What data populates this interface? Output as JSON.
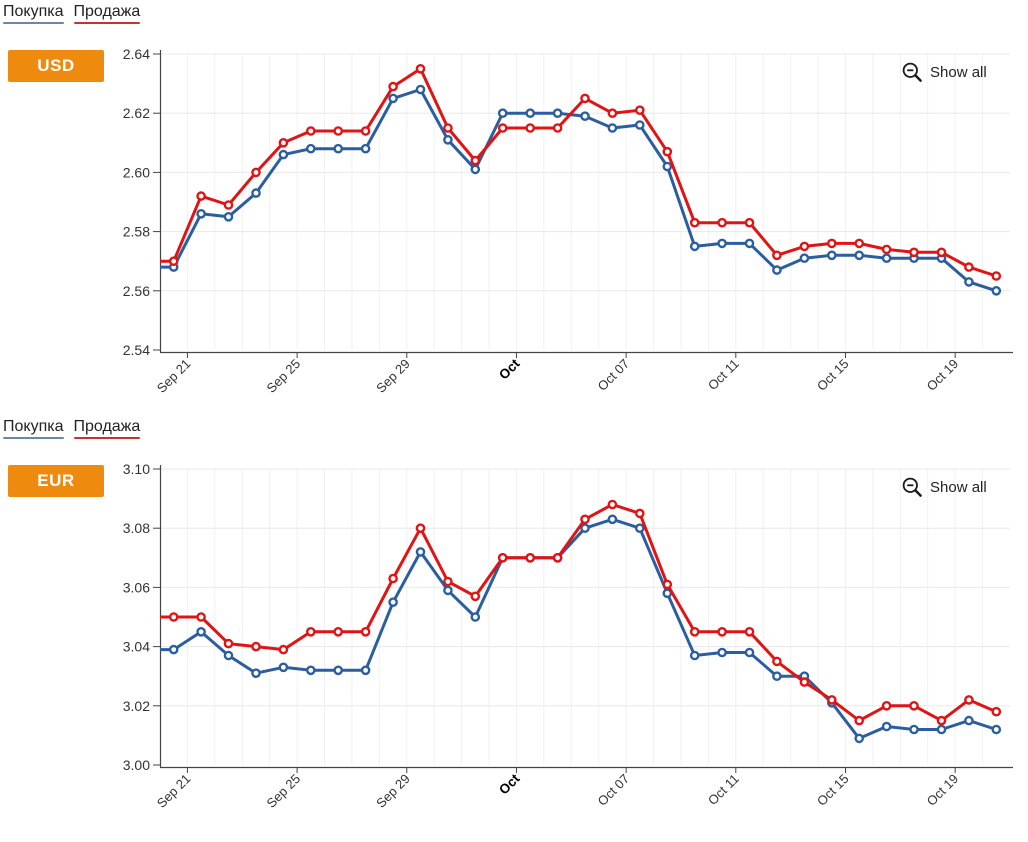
{
  "chart_data": [
    {
      "type": "line",
      "badge": "USD",
      "show_all_label": "Show all",
      "legend_position": "top-left",
      "grid": true,
      "legend": [
        {
          "label": "Покупка",
          "color": "#2b5ea1"
        },
        {
          "label": "Продажа",
          "color": "#e11313"
        }
      ],
      "ylim": [
        2.54,
        2.64
      ],
      "y_ticks": [
        "2.64",
        "2.62",
        "2.60",
        "2.58",
        "2.56",
        "2.54"
      ],
      "x_ticks": [
        {
          "label": "Sep 21",
          "index": 1,
          "bold": false
        },
        {
          "label": "Sep 25",
          "index": 5,
          "bold": false
        },
        {
          "label": "Sep 29",
          "index": 9,
          "bold": false
        },
        {
          "label": "Oct",
          "index": 13,
          "bold": true
        },
        {
          "label": "Oct 07",
          "index": 17,
          "bold": false
        },
        {
          "label": "Oct 11",
          "index": 21,
          "bold": false
        },
        {
          "label": "Oct 15",
          "index": 25,
          "bold": false
        },
        {
          "label": "Oct 19",
          "index": 29,
          "bold": false
        }
      ],
      "categories": [
        "Sep 20",
        "Sep 21",
        "Sep 22",
        "Sep 23",
        "Sep 24",
        "Sep 25",
        "Sep 26",
        "Sep 27",
        "Sep 28",
        "Sep 29",
        "Sep 30",
        "Oct 01",
        "Oct 02",
        "Oct 03",
        "Oct 04",
        "Oct 05",
        "Oct 06",
        "Oct 07",
        "Oct 08",
        "Oct 09",
        "Oct 10",
        "Oct 11",
        "Oct 12",
        "Oct 13",
        "Oct 14",
        "Oct 15",
        "Oct 16",
        "Oct 17",
        "Oct 18",
        "Oct 19",
        "Oct 20"
      ],
      "series": [
        {
          "name": "Покупка",
          "color": "#2b5ea1",
          "values": [
            2.568,
            2.586,
            2.585,
            2.593,
            2.606,
            2.608,
            2.608,
            2.608,
            2.625,
            2.628,
            2.611,
            2.601,
            2.62,
            2.62,
            2.62,
            2.619,
            2.615,
            2.616,
            2.602,
            2.575,
            2.576,
            2.576,
            2.567,
            2.571,
            2.572,
            2.572,
            2.571,
            2.571,
            2.571,
            2.563,
            2.56
          ]
        },
        {
          "name": "Продажа",
          "color": "#e11313",
          "values": [
            2.57,
            2.592,
            2.589,
            2.6,
            2.61,
            2.614,
            2.614,
            2.614,
            2.629,
            2.635,
            2.615,
            2.604,
            2.615,
            2.615,
            2.615,
            2.625,
            2.62,
            2.621,
            2.607,
            2.583,
            2.583,
            2.583,
            2.572,
            2.575,
            2.576,
            2.576,
            2.574,
            2.573,
            2.573,
            2.568,
            2.565
          ]
        }
      ]
    },
    {
      "type": "line",
      "badge": "EUR",
      "show_all_label": "Show all",
      "legend_position": "top-left",
      "grid": true,
      "legend": [
        {
          "label": "Покупка",
          "color": "#2b5ea1"
        },
        {
          "label": "Продажа",
          "color": "#e11313"
        }
      ],
      "ylim": [
        3.0,
        3.1
      ],
      "y_ticks": [
        "3.10",
        "3.08",
        "3.06",
        "3.04",
        "3.02",
        "3.00"
      ],
      "x_ticks": [
        {
          "label": "Sep 21",
          "index": 1,
          "bold": false
        },
        {
          "label": "Sep 25",
          "index": 5,
          "bold": false
        },
        {
          "label": "Sep 29",
          "index": 9,
          "bold": false
        },
        {
          "label": "Oct",
          "index": 13,
          "bold": true
        },
        {
          "label": "Oct 07",
          "index": 17,
          "bold": false
        },
        {
          "label": "Oct 11",
          "index": 21,
          "bold": false
        },
        {
          "label": "Oct 15",
          "index": 25,
          "bold": false
        },
        {
          "label": "Oct 19",
          "index": 29,
          "bold": false
        }
      ],
      "categories": [
        "Sep 20",
        "Sep 21",
        "Sep 22",
        "Sep 23",
        "Sep 24",
        "Sep 25",
        "Sep 26",
        "Sep 27",
        "Sep 28",
        "Sep 29",
        "Sep 30",
        "Oct 01",
        "Oct 02",
        "Oct 03",
        "Oct 04",
        "Oct 05",
        "Oct 06",
        "Oct 07",
        "Oct 08",
        "Oct 09",
        "Oct 10",
        "Oct 11",
        "Oct 12",
        "Oct 13",
        "Oct 14",
        "Oct 15",
        "Oct 16",
        "Oct 17",
        "Oct 18",
        "Oct 19",
        "Oct 20"
      ],
      "series": [
        {
          "name": "Покупка",
          "color": "#2b5ea1",
          "values": [
            3.039,
            3.045,
            3.037,
            3.031,
            3.033,
            3.032,
            3.032,
            3.032,
            3.055,
            3.072,
            3.059,
            3.05,
            3.07,
            3.07,
            3.07,
            3.08,
            3.083,
            3.08,
            3.058,
            3.037,
            3.038,
            3.038,
            3.03,
            3.03,
            3.021,
            3.009,
            3.013,
            3.012,
            3.012,
            3.015,
            3.012
          ]
        },
        {
          "name": "Продажа",
          "color": "#e11313",
          "values": [
            3.05,
            3.05,
            3.041,
            3.04,
            3.039,
            3.045,
            3.045,
            3.045,
            3.063,
            3.08,
            3.062,
            3.057,
            3.07,
            3.07,
            3.07,
            3.083,
            3.088,
            3.085,
            3.061,
            3.045,
            3.045,
            3.045,
            3.035,
            3.028,
            3.022,
            3.015,
            3.02,
            3.02,
            3.015,
            3.022,
            3.018
          ]
        }
      ]
    }
  ]
}
